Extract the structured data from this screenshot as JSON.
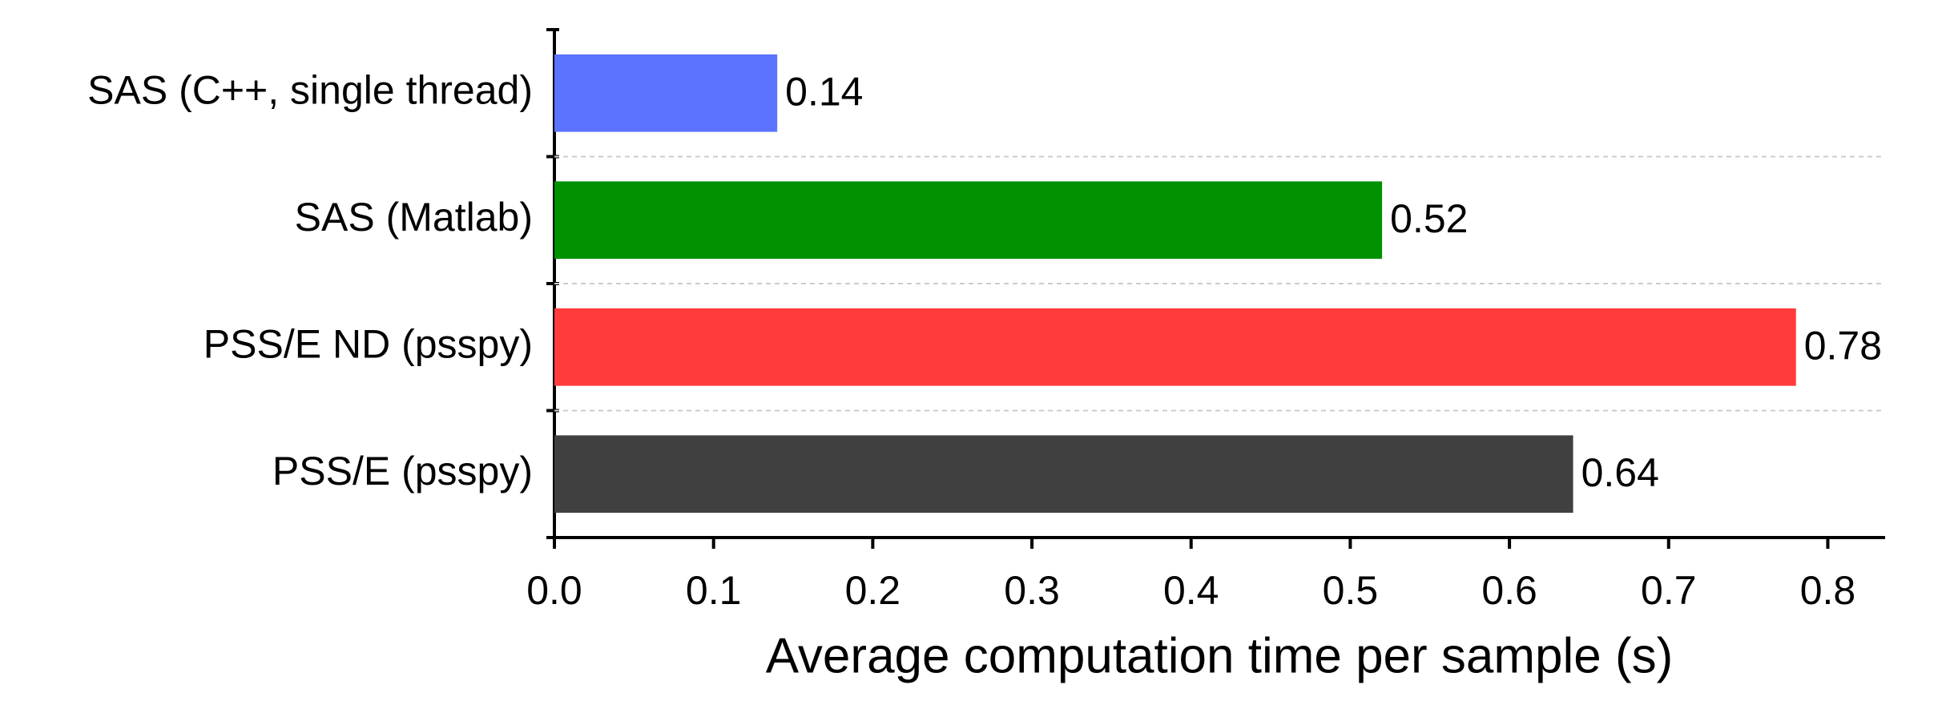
{
  "chart_data": {
    "type": "barh",
    "categories": [
      "SAS (C++, single thread)",
      "SAS (Matlab)",
      "PSS/E ND (psspy)",
      "PSS/E (psspy)"
    ],
    "values": [
      0.14,
      0.52,
      0.78,
      0.64
    ],
    "colors": [
      "#5b73ff",
      "#009100",
      "#ff3b3b",
      "#404040"
    ],
    "xlabel": "Average computation time per sample (s)",
    "xlim": [
      0,
      0.836
    ],
    "xticks": [
      {
        "value": 0,
        "label": "0.0"
      },
      0.1,
      0.2,
      0.3,
      0.4,
      0.5,
      0.6,
      0.7,
      0.8
    ]
  }
}
